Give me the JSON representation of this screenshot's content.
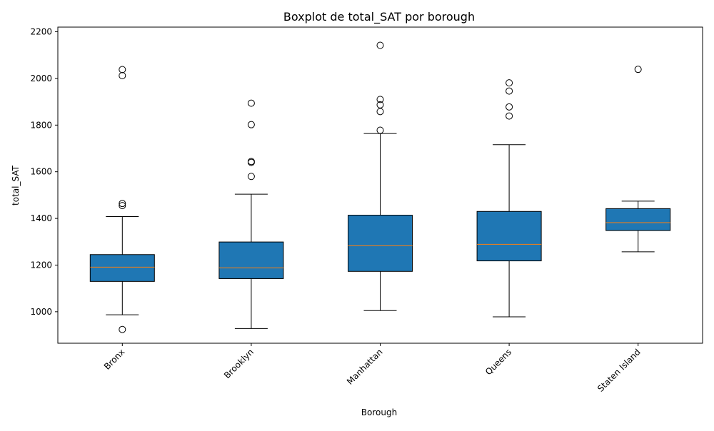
{
  "chart_data": {
    "type": "boxplot",
    "title": "Boxplot de total_SAT por borough",
    "xlabel": "Borough",
    "ylabel": "total_SAT",
    "ylim": [
      865,
      2220
    ],
    "yticks": [
      1000,
      1200,
      1400,
      1600,
      1800,
      2000,
      2200
    ],
    "grid": false,
    "box_color": "#1f77b4",
    "median_color": "#ff7f0e",
    "categories": [
      "Bronx",
      "Brooklyn",
      "Manhattan",
      "Queens",
      "Staten Island"
    ],
    "boxes": [
      {
        "label": "Bronx",
        "whisker_low": 987,
        "q1": 1130,
        "median": 1191,
        "q3": 1245,
        "whisker_high": 1408,
        "outliers": [
          2038,
          2012,
          1464,
          1455,
          924
        ]
      },
      {
        "label": "Brooklyn",
        "whisker_low": 928,
        "q1": 1142,
        "median": 1188,
        "q3": 1299,
        "whisker_high": 1504,
        "outliers": [
          1894,
          1802,
          1644,
          1640,
          1580
        ]
      },
      {
        "label": "Manhattan",
        "whisker_low": 1005,
        "q1": 1173,
        "median": 1283,
        "q3": 1414,
        "whisker_high": 1764,
        "outliers": [
          2142,
          1910,
          1887,
          1858,
          1778
        ]
      },
      {
        "label": "Queens",
        "whisker_low": 978,
        "q1": 1218,
        "median": 1289,
        "q3": 1430,
        "whisker_high": 1716,
        "outliers": [
          1981,
          1946,
          1878,
          1839
        ]
      },
      {
        "label": "Staten Island",
        "whisker_low": 1257,
        "q1": 1348,
        "median": 1382,
        "q3": 1442,
        "whisker_high": 1474,
        "outliers": [
          2039
        ]
      }
    ]
  }
}
